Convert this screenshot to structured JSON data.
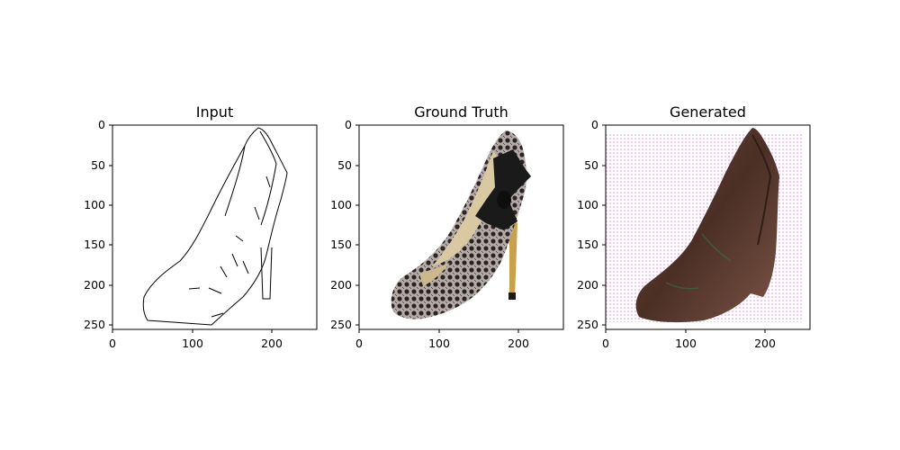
{
  "panels": [
    {
      "title": "Input",
      "image_description": "edge map sketch of a high-heel shoe",
      "x_ticks": [
        "0",
        "100",
        "200"
      ],
      "y_ticks": [
        "0",
        "50",
        "100",
        "150",
        "200",
        "250"
      ]
    },
    {
      "title": "Ground Truth",
      "image_description": "photo of a black lace high-heel pump with bow",
      "x_ticks": [
        "0",
        "100",
        "200"
      ],
      "y_ticks": [
        "0",
        "50",
        "100",
        "150",
        "200",
        "250"
      ]
    },
    {
      "title": "Generated",
      "image_description": "generated brown high-heel shoe on pink dotted background",
      "x_ticks": [
        "0",
        "100",
        "200"
      ],
      "y_ticks": [
        "0",
        "50",
        "100",
        "150",
        "200",
        "250"
      ]
    }
  ],
  "axis_range": {
    "x": [
      0,
      256
    ],
    "y": [
      256,
      0
    ]
  },
  "colors": {
    "lace_dark": "#2a2424",
    "lace_light": "#b7ada8",
    "bow": "#1a1a1a",
    "insole": "#d9c9a3",
    "heel_gold": "#c9a14a",
    "gen_brown": "#5b3a2c",
    "gen_dots": "#e08ee0"
  }
}
